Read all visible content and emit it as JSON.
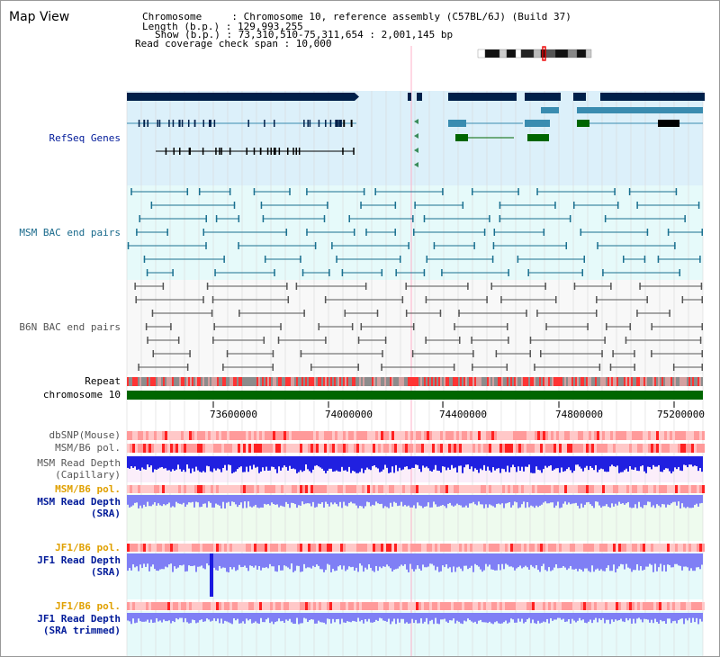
{
  "header": {
    "title": "Map View",
    "chromosome_line": "Chromosome     : Chromosome 10, reference assembly (C57BL/6J) (Build 37)",
    "length_line": "Length (b.p.) : 129,993,255",
    "show_line": "Show (b.p.) : 73,310,510-75,311,654 : 2,001,145 bp",
    "coverage_line": "Read coverage check span : 10,000"
  },
  "tracks": {
    "refseq": "RefSeq Genes",
    "msm_bac": "MSM BAC end pairs",
    "b6n_bac": "B6N BAC end pairs",
    "repeat": "Repeat",
    "chromosome": "chromosome 10",
    "dbsnp": "dbSNP(Mouse)",
    "msm_pol": "MSM/B6 pol.",
    "msm_depth_cap_1": "MSM Read Depth",
    "msm_depth_cap_2": "(Capillary)",
    "msm_pol2": "MSM/B6 pol.",
    "msm_depth_sra_1": "MSM Read Depth",
    "msm_depth_sra_2": "(SRA)",
    "jf1_pol": "JF1/B6 pol.",
    "jf1_depth_sra_1": "JF1 Read Depth",
    "jf1_depth_sra_2": "(SRA)",
    "jf1_pol2": "JF1/B6 pol.",
    "jf1_depth_trim_1": "JF1 Read Depth",
    "jf1_depth_trim_2": "(SRA trimmed)"
  },
  "axis": {
    "ticks": [
      "73600000",
      "74000000",
      "74400000",
      "74800000",
      "75200000"
    ]
  },
  "colors": {
    "refseq_bg": "#dcf0fa",
    "bac_bg": "#e6fafa",
    "b6n_bg": "#f8f8f8",
    "gene_navy": "#00204a",
    "gene_teal": "#3a8cb0",
    "gene_green": "#006600",
    "bac_line": "#1a7090",
    "b6n_line": "#555555",
    "chrom_green": "#006600",
    "depth_blue": "#2020e0",
    "depth_light": "#7f7ff5",
    "pol_label": "#e0a000",
    "label_navy": "#001a99",
    "label_teal": "#1a6a8c",
    "label_gray": "#555555"
  }
}
